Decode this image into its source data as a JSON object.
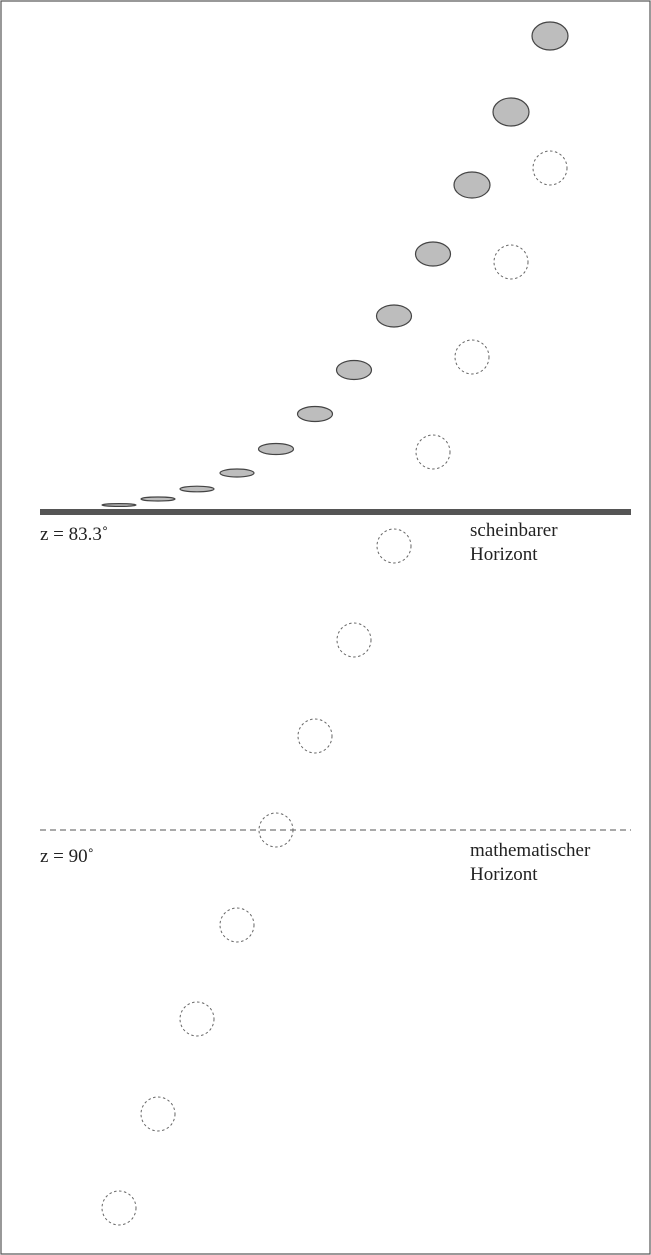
{
  "labels": {
    "apparent_zenith": "z = 83.3˚",
    "apparent_horizon_line1": "scheinbarer",
    "apparent_horizon_line2": "Horizont",
    "math_zenith": "z = 90˚",
    "math_horizon_line1": "mathematischer",
    "math_horizon_line2": "Horizont"
  },
  "colors": {
    "frame": "#555555",
    "apparent_horizon": "#555555",
    "math_horizon": "#555555",
    "sun_fill": "#bdbdbd",
    "sun_stroke": "#444444",
    "true_sun_stroke": "#666666"
  },
  "elements": {
    "apparent_suns": "refracted sun discs, flattened near horizon",
    "true_suns": "true sun positions (dashed circles)"
  }
}
